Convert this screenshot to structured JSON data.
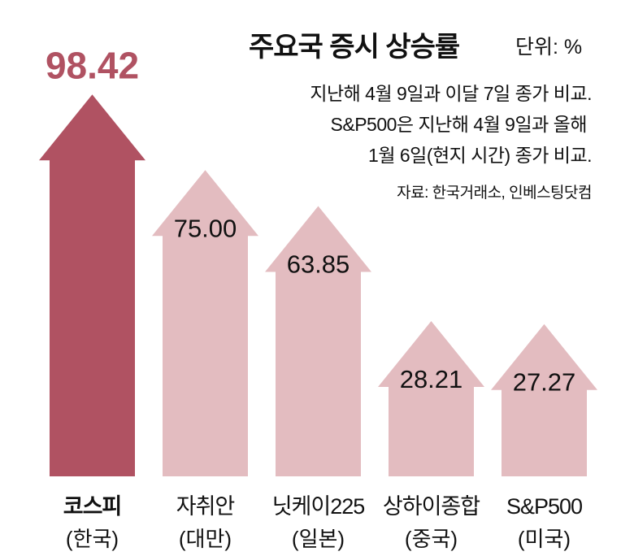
{
  "title": "주요국 증시 상승률",
  "unit": "단위: %",
  "notes": [
    "지난해 4월 9일과 이달 7일 종가 비교.",
    "S&P500은 지난해 4월 9일과 올해",
    "1월 6일(현지 시간) 종가 비교."
  ],
  "source": "자료: 한국거래소, 인베스팅닷컴",
  "chart_data": {
    "type": "bar",
    "style": "upward arrows",
    "title": "주요국 증시 상승률",
    "unit": "%",
    "categories": [
      "코스피",
      "자취안",
      "닛케이225",
      "상하이종합",
      "S&P500"
    ],
    "subcategories": [
      "(한국)",
      "(대만)",
      "(일본)",
      "(중국)",
      "(미국)"
    ],
    "values": [
      98.42,
      75.0,
      63.85,
      28.21,
      27.27
    ],
    "value_labels": [
      "98.42",
      "75.00",
      "63.85",
      "28.21",
      "27.27"
    ],
    "highlight_index": 0,
    "colors": {
      "highlight": "#b05262",
      "default": "#e3bcc0",
      "highlight_text": "#b05262"
    }
  }
}
